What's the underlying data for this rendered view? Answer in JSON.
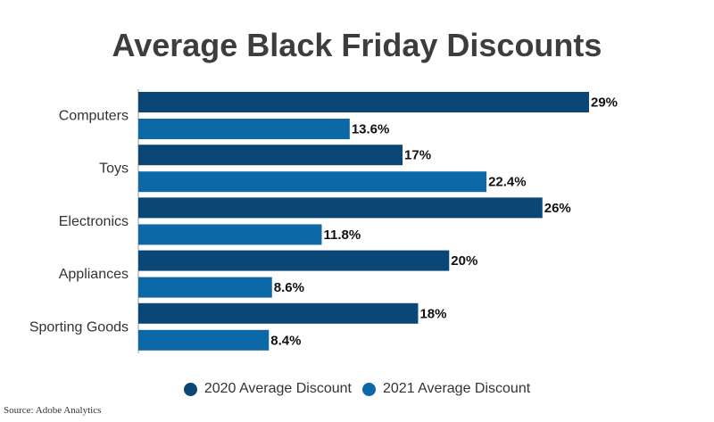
{
  "chart_data": {
    "type": "bar",
    "orientation": "horizontal",
    "title": "Average Black Friday Discounts",
    "categories": [
      "Computers",
      "Toys",
      "Electronics",
      "Appliances",
      "Sporting Goods"
    ],
    "series": [
      {
        "name": "2020 Average Discount",
        "values": [
          29,
          17,
          26,
          20,
          18
        ],
        "labels": [
          "29%",
          "17%",
          "26%",
          "20%",
          "18%"
        ],
        "color": "#0b4776"
      },
      {
        "name": "2021 Average Discount",
        "values": [
          13.6,
          22.4,
          11.8,
          8.6,
          8.4
        ],
        "labels": [
          "13.6%",
          "22.4%",
          "11.8%",
          "8.6%",
          "8.4%"
        ],
        "color": "#0d68a8"
      }
    ],
    "xlim": [
      0,
      29
    ],
    "grid": false,
    "legend": "bottom"
  },
  "source": "Source: Adobe Analytics"
}
